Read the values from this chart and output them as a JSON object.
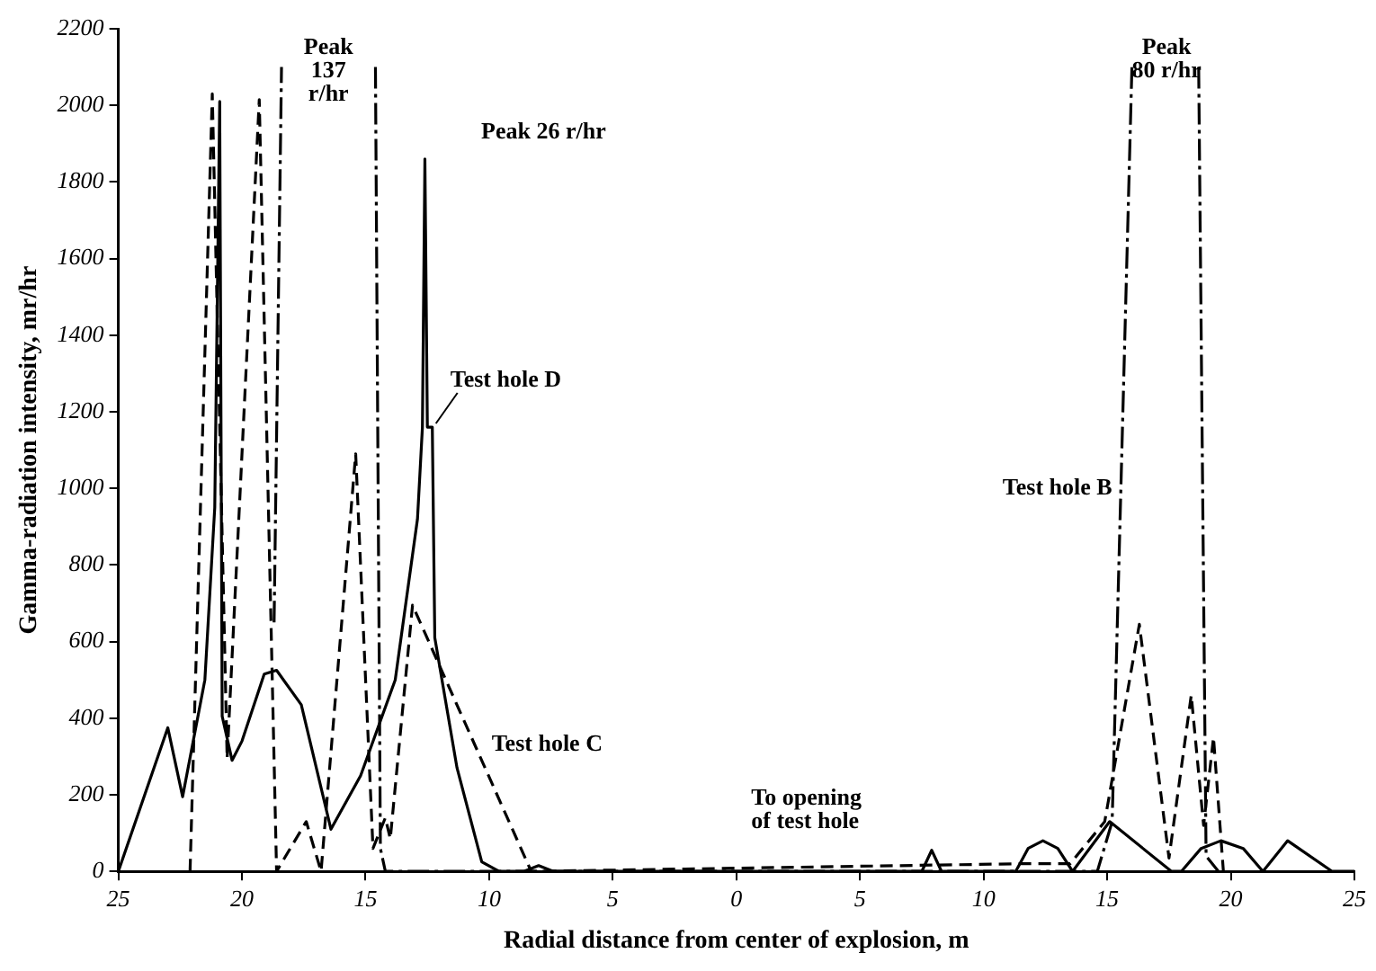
{
  "chart_data": {
    "type": "line",
    "xlabel": "Radial distance from center of explosion, m",
    "ylabel": "Gamma-radiation intensity, mr/hr",
    "xlim": [
      -25,
      25
    ],
    "ylim": [
      0,
      2200
    ],
    "xticks": [
      {
        "value": -25,
        "label": "25"
      },
      {
        "value": -20,
        "label": "20"
      },
      {
        "value": -15,
        "label": "15"
      },
      {
        "value": -10,
        "label": "10"
      },
      {
        "value": -5,
        "label": "5"
      },
      0,
      5,
      10,
      15,
      20,
      25
    ],
    "yticks": [
      0,
      200,
      400,
      600,
      800,
      1000,
      1200,
      1400,
      1600,
      1800,
      2000,
      2200
    ],
    "grid": false,
    "legend": false,
    "marker": "none",
    "series": [
      {
        "name": "Test hole D",
        "color": "#000000",
        "line_style": "solid",
        "x": [
          -25,
          -23,
          -22.4,
          -21.5,
          -21.1,
          -20.9,
          -20.8,
          -20.4,
          -20,
          -19.1,
          -18.6,
          -17.6,
          -16.4,
          -15.2,
          -13.8,
          -12.9,
          -12.7,
          -12.6,
          -12.5,
          -12.3,
          -12.2,
          -11.3,
          -10.3,
          -9.6,
          -8.6,
          -8,
          -7.4,
          7.5,
          7.9,
          8.3,
          11.3,
          11.8,
          12.4,
          13,
          13.6,
          15.1,
          17.6,
          18,
          18.8,
          19.6,
          20.5,
          21.3,
          22.3,
          24.1,
          25
        ],
        "values": [
          0,
          375,
          195,
          500,
          950,
          2010,
          405,
          290,
          340,
          515,
          525,
          435,
          110,
          250,
          500,
          920,
          1160,
          1860,
          1160,
          1160,
          610,
          270,
          25,
          0,
          0,
          15,
          0,
          0,
          55,
          0,
          0,
          60,
          80,
          60,
          0,
          130,
          0,
          0,
          60,
          80,
          60,
          0,
          80,
          0,
          0
        ]
      },
      {
        "name": "Test hole B",
        "color": "#000000",
        "line_style": "dashdot",
        "x": [
          -18.7,
          -18.4,
          -16.5,
          -14.6,
          -14.4,
          -14.2,
          14.6,
          15.2,
          16,
          17.4,
          18.7,
          19,
          19.5
        ],
        "values": [
          650,
          2100,
          null,
          2100,
          60,
          0,
          0,
          130,
          2100,
          null,
          2100,
          40,
          0
        ]
      },
      {
        "name": "Test hole C",
        "color": "#000000",
        "line_style": "dashed",
        "x": [
          -22.1,
          -21.2,
          -20.6,
          -19.3,
          -18.6,
          -17.4,
          -16.8,
          -15.4,
          -14.7,
          -14.2,
          -14,
          -13.1,
          -8.3,
          11.5,
          13.5,
          14.9,
          16.3,
          17.5,
          18.4,
          18.9,
          19.3,
          19.7
        ],
        "values": [
          0,
          2030,
          295,
          2015,
          0,
          130,
          0,
          1090,
          60,
          140,
          85,
          695,
          0,
          20,
          20,
          130,
          645,
          35,
          460,
          120,
          350,
          0
        ]
      }
    ],
    "annotations": [
      "Peak\n137\nr/hr",
      "Peak 26 r/hr",
      "Peak\n80 r/hr",
      "To opening\nof test hole"
    ]
  }
}
